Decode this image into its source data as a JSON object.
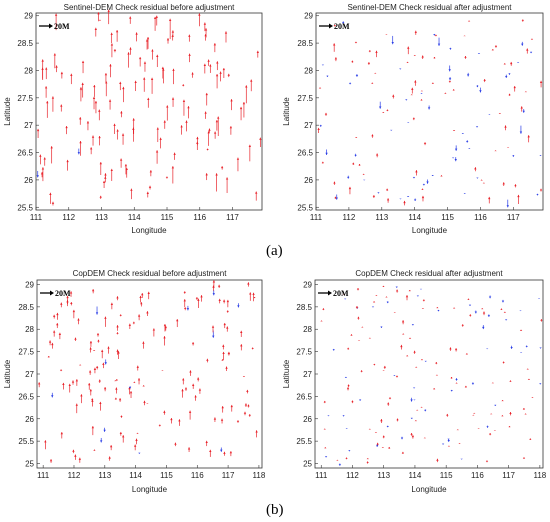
{
  "captions": {
    "a": "(a)",
    "b": "(b)"
  },
  "colors": {
    "positive": "#e8232a",
    "negative": "#2a3ee6",
    "scale": "#000000",
    "axis": "#333333"
  },
  "chart_data": [
    {
      "id": "p1",
      "type": "quiver",
      "title": "Sentinel-DEM Check residual before adjustment",
      "xlabel": "Longitude",
      "ylabel": "Latitude",
      "xlim": [
        111,
        117.9
      ],
      "ylim": [
        25.45,
        29.05
      ],
      "xticks": [
        111,
        112,
        113,
        114,
        115,
        116,
        117
      ],
      "yticks": [
        25.5,
        26,
        26.5,
        27,
        27.5,
        28,
        28.5,
        29
      ],
      "scale_label": "20M",
      "scale_value": 20,
      "legend_position": "top-left",
      "points_sampled": 150,
      "seed": 11,
      "mean_residual": 14,
      "spread": 7,
      "negative_share": 0.02
    },
    {
      "id": "p2",
      "type": "quiver",
      "title": "Sentinel-DEM Check residual after adjustment",
      "xlabel": "Longitude",
      "ylabel": "Latitude",
      "xlim": [
        111,
        117.9
      ],
      "ylim": [
        25.45,
        29.05
      ],
      "xticks": [
        111,
        112,
        113,
        114,
        115,
        116,
        117
      ],
      "yticks": [
        25.5,
        26,
        26.5,
        27,
        27.5,
        28,
        28.5,
        29
      ],
      "scale_label": "20M",
      "scale_value": 20,
      "legend_position": "top-left",
      "points_sampled": 140,
      "seed": 23,
      "mean_residual": 2,
      "spread": 6,
      "negative_share": 0.45
    },
    {
      "id": "p3",
      "type": "quiver",
      "title": "CopDEM Check residual before adjustment",
      "xlabel": "Longitude",
      "ylabel": "Latitude",
      "xlim": [
        110.8,
        118.1
      ],
      "ylim": [
        24.9,
        29.1
      ],
      "xticks": [
        111,
        112,
        113,
        114,
        115,
        116,
        117,
        118
      ],
      "yticks": [
        25,
        25.5,
        26,
        26.5,
        27,
        27.5,
        28,
        28.5,
        29
      ],
      "scale_label": "20M",
      "scale_value": 20,
      "legend_position": "top-left",
      "points_sampled": 170,
      "seed": 37,
      "mean_residual": 7,
      "spread": 4,
      "negative_share": 0.05
    },
    {
      "id": "p4",
      "type": "quiver",
      "title": "CopDEM Check residual after adjustment",
      "xlabel": "Longitude",
      "ylabel": "Latitude",
      "xlim": [
        110.8,
        118.1
      ],
      "ylim": [
        24.9,
        29.1
      ],
      "xticks": [
        111,
        112,
        113,
        114,
        115,
        116,
        117,
        118
      ],
      "yticks": [
        25,
        25.5,
        26,
        26.5,
        27,
        27.5,
        28,
        28.5,
        29
      ],
      "scale_label": "20M",
      "scale_value": 20,
      "legend_position": "top-left",
      "points_sampled": 160,
      "seed": 51,
      "mean_residual": 1,
      "spread": 3,
      "negative_share": 0.35
    }
  ]
}
